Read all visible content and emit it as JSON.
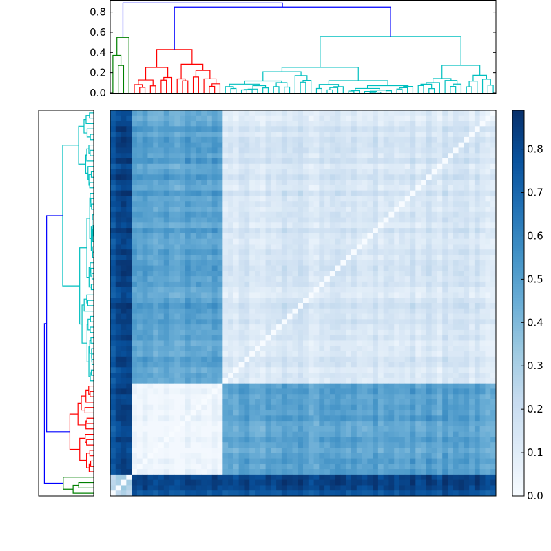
{
  "chart_data": [
    {
      "type": "dendrogram",
      "orientation": "top",
      "y_ticks": [
        "0.0",
        "0.2",
        "0.4",
        "0.6",
        "0.8"
      ],
      "ylim": [
        0.0,
        0.92
      ],
      "leaf_count": 72,
      "clusters": [
        {
          "color": "#008000",
          "leaves": 4,
          "merge_height": 0.55
        },
        {
          "color": "#ff0000",
          "leaves": 17,
          "merge_height": 0.43
        },
        {
          "color": "#00bfbf",
          "leaves": 51,
          "merge_height": 0.56
        }
      ],
      "links": [
        {
          "color": "#0000ff",
          "merge_height": 0.85,
          "joins": "red + cyan"
        },
        {
          "color": "#0000ff",
          "merge_height": 0.89,
          "joins": "green + (red, cyan)"
        }
      ]
    },
    {
      "type": "dendrogram",
      "orientation": "left",
      "same_tree_as": "top",
      "clusters": [
        {
          "color": "#008000",
          "leaves": 4
        },
        {
          "color": "#ff0000",
          "leaves": 17
        },
        {
          "color": "#00bfbf",
          "leaves": 51
        }
      ]
    },
    {
      "type": "heatmap",
      "size": [
        72,
        72
      ],
      "colormap": "Blues",
      "vmin": 0.0,
      "vmax": 0.89,
      "colorbar_ticks": [
        "0.0",
        "0.1",
        "0.2",
        "0.3",
        "0.4",
        "0.5",
        "0.6",
        "0.7",
        "0.8"
      ],
      "block_order_top_to_bottom": [
        "cyan",
        "red",
        "green"
      ],
      "block_order_left_to_right": [
        "green",
        "red",
        "cyan"
      ],
      "diagonal_value": 0.0,
      "typical_values": {
        "within_red": 0.05,
        "within_cyan": 0.15,
        "within_green": 0.25,
        "red_vs_cyan": 0.5,
        "green_vs_red": 0.8,
        "green_vs_cyan": 0.8
      }
    }
  ]
}
